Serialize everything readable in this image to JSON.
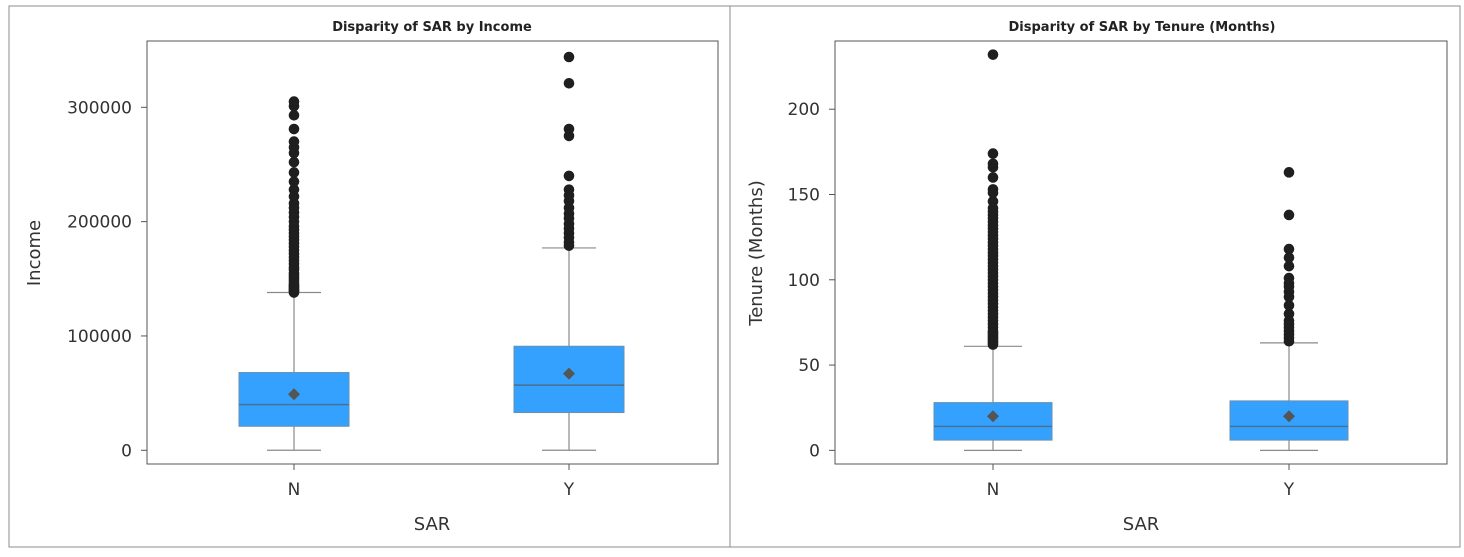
{
  "chart_data": [
    {
      "type": "boxplot",
      "title": "Disparity of SAR by Income",
      "xlabel": "SAR",
      "ylabel": "Income",
      "ylim": [
        -12000,
        358000
      ],
      "yticks": [
        0,
        100000,
        200000,
        300000
      ],
      "categories": [
        "N",
        "Y"
      ],
      "grid": false,
      "box_color": "#33a1fd",
      "boxes": [
        {
          "category": "N",
          "min": 0,
          "q1": 21000,
          "median": 40000,
          "mean": 49000,
          "q3": 68000,
          "whisker_high": 138000,
          "outliers": [
            138000,
            139000,
            140000,
            141000,
            142000,
            143000,
            144000,
            145000,
            147000,
            149000,
            151000,
            153000,
            155000,
            158000,
            160000,
            163000,
            166000,
            169000,
            172000,
            175000,
            178000,
            181000,
            184000,
            187000,
            190000,
            193000,
            196000,
            200000,
            204000,
            208000,
            212000,
            216000,
            222000,
            228000,
            235000,
            243000,
            252000,
            260000,
            265000,
            270000,
            281000,
            293000,
            301000,
            305000
          ]
        },
        {
          "category": "Y",
          "min": 0,
          "q1": 33000,
          "median": 57000,
          "mean": 67000,
          "q3": 91000,
          "whisker_high": 177000,
          "outliers": [
            179000,
            182000,
            186000,
            190000,
            194000,
            198000,
            203000,
            207000,
            212000,
            218000,
            223000,
            228000,
            240000,
            275000,
            281000,
            321000,
            344000
          ]
        }
      ]
    },
    {
      "type": "boxplot",
      "title": "Disparity of SAR by Tenure (Months)",
      "xlabel": "SAR",
      "ylabel": "Tenure (Months)",
      "ylim": [
        -8,
        240
      ],
      "yticks": [
        0,
        50,
        100,
        150,
        200
      ],
      "categories": [
        "N",
        "Y"
      ],
      "grid": false,
      "box_color": "#33a1fd",
      "boxes": [
        {
          "category": "N",
          "min": 0,
          "q1": 6,
          "median": 14,
          "mean": 20,
          "q3": 28,
          "whisker_high": 61,
          "outliers": [
            62,
            63,
            64,
            65,
            66,
            67,
            68,
            69,
            70,
            72,
            74,
            76,
            78,
            80,
            82,
            84,
            86,
            88,
            90,
            92,
            94,
            96,
            98,
            100,
            102,
            104,
            106,
            108,
            110,
            112,
            114,
            116,
            118,
            120,
            122,
            124,
            126,
            128,
            130,
            132,
            134,
            136,
            138,
            140,
            142,
            146,
            151,
            153,
            160,
            166,
            168,
            174,
            232
          ]
        },
        {
          "category": "Y",
          "min": 0,
          "q1": 6,
          "median": 14,
          "mean": 20,
          "q3": 29,
          "whisker_high": 63,
          "outliers": [
            64,
            66,
            68,
            70,
            72,
            74,
            76,
            80,
            85,
            90,
            93,
            96,
            98,
            101,
            108,
            113,
            118,
            138,
            163
          ]
        }
      ]
    }
  ]
}
